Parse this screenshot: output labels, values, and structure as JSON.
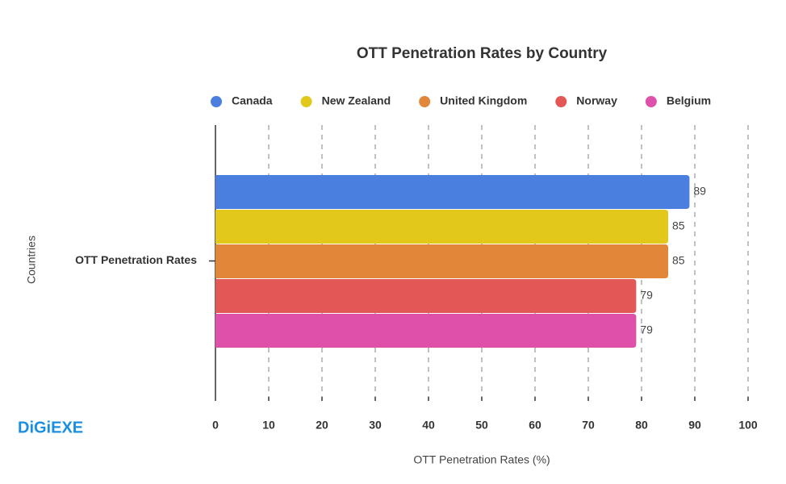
{
  "chart_data": {
    "type": "bar",
    "orientation": "horizontal",
    "title": "OTT Penetration Rates by Country",
    "x_label": "OTT Penetration Rates (%)",
    "y_label": "Countries",
    "watermark": "DiGiEXE",
    "categories": [
      "OTT Penetration Rates"
    ],
    "series": [
      {
        "name": "Canada",
        "color": "#4a7fe0",
        "values": [
          89
        ]
      },
      {
        "name": "New Zealand",
        "color": "#e3c81c",
        "values": [
          85
        ]
      },
      {
        "name": "United Kingdom",
        "color": "#e2863a",
        "values": [
          85
        ]
      },
      {
        "name": "Norway",
        "color": "#e45757",
        "values": [
          79
        ]
      },
      {
        "name": "Belgium",
        "color": "#df50aa",
        "values": [
          79
        ]
      }
    ],
    "xlim": [
      0,
      100
    ],
    "xticks": [
      0,
      10,
      20,
      30,
      40,
      50,
      60,
      70,
      80,
      90,
      100
    ],
    "grid": true,
    "legend": "top"
  }
}
